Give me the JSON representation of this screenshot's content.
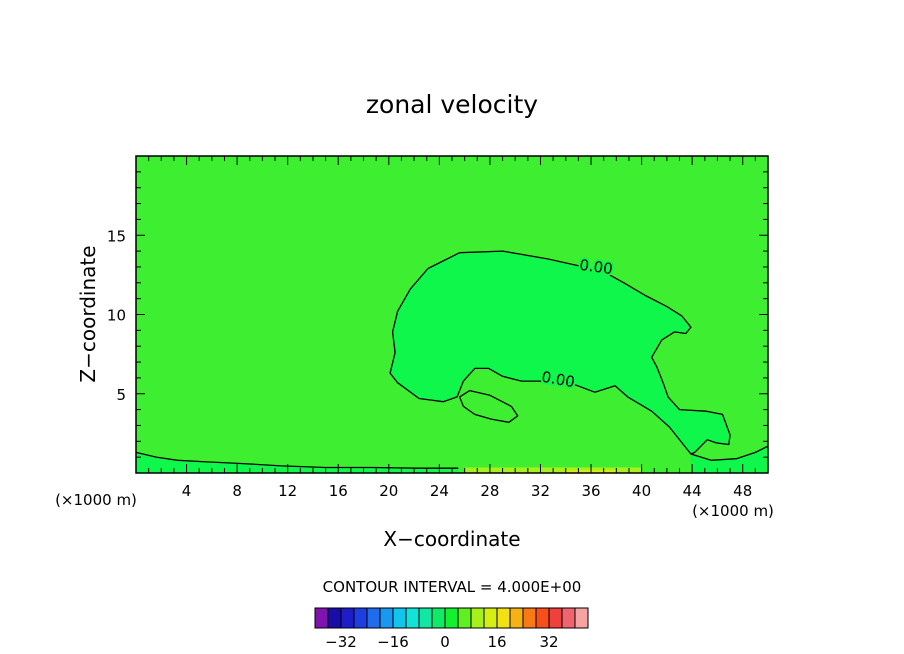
{
  "chart_data": {
    "type": "contour",
    "title": "zonal velocity",
    "xlabel": "X−coordinate",
    "ylabel": "Z−coordinate",
    "x_unit_left": "(×1000 m)",
    "x_unit_right": "(×1000 m)",
    "xlim": [
      0,
      50
    ],
    "ylim": [
      0,
      20
    ],
    "x_ticks": [
      4,
      8,
      12,
      16,
      20,
      24,
      28,
      32,
      36,
      40,
      44,
      48
    ],
    "y_ticks": [
      5,
      10,
      15
    ],
    "contour_interval_label": "CONTOUR INTERVAL = 4.000E+00",
    "contour_level_label": "0.00",
    "colorbar_ticks": [
      "−32",
      "−16",
      "0",
      "16",
      "32"
    ],
    "colorbar_colors": [
      "#7f13b0",
      "#1a0ca8",
      "#1e1ec8",
      "#1f3ee2",
      "#1f6cee",
      "#1a98f0",
      "#10c6ef",
      "#11e3d6",
      "#10e7a4",
      "#10ea66",
      "#12f030",
      "#5ef020",
      "#a6f01c",
      "#d6ef12",
      "#f2e214",
      "#f6b214",
      "#f97a14",
      "#f84e1c",
      "#f0403c",
      "#f06470",
      "#f5a3a3"
    ],
    "background_level_color": "#3eee30",
    "inner_region_color": "#0ff74a",
    "zero_contours": [
      {
        "closed": true,
        "points": [
          [
            20.1,
            6.3
          ],
          [
            20.5,
            7.6
          ],
          [
            20.3,
            8.9
          ],
          [
            20.7,
            10.2
          ],
          [
            21.7,
            11.6
          ],
          [
            23.1,
            12.9
          ],
          [
            25.6,
            13.9
          ],
          [
            29.0,
            14.0
          ],
          [
            32.6,
            13.5
          ],
          [
            35.4,
            13.0
          ],
          [
            37.0,
            12.7
          ],
          [
            38.6,
            12.0
          ],
          [
            40.3,
            11.2
          ],
          [
            42.0,
            10.5
          ],
          [
            43.2,
            9.9
          ],
          [
            43.9,
            9.2
          ],
          [
            43.5,
            8.8
          ],
          [
            42.6,
            8.9
          ],
          [
            41.6,
            8.4
          ],
          [
            40.8,
            7.3
          ],
          [
            41.2,
            6.7
          ],
          [
            41.7,
            5.7
          ],
          [
            42.1,
            4.8
          ],
          [
            43.0,
            4.0
          ],
          [
            45.1,
            3.9
          ],
          [
            46.4,
            3.7
          ],
          [
            47.0,
            2.4
          ],
          [
            46.9,
            1.8
          ],
          [
            45.9,
            1.9
          ],
          [
            45.2,
            2.1
          ],
          [
            44.2,
            1.3
          ],
          [
            43.9,
            1.2
          ],
          [
            42.2,
            2.9
          ],
          [
            40.8,
            3.9
          ],
          [
            38.9,
            4.8
          ],
          [
            37.9,
            5.5
          ],
          [
            36.3,
            5.1
          ],
          [
            34.3,
            5.7
          ],
          [
            32.5,
            5.8
          ],
          [
            30.5,
            5.8
          ],
          [
            29.0,
            6.1
          ],
          [
            27.9,
            6.6
          ],
          [
            26.8,
            6.6
          ],
          [
            25.9,
            5.8
          ],
          [
            25.4,
            4.8
          ],
          [
            24.3,
            4.5
          ],
          [
            22.4,
            4.7
          ],
          [
            20.7,
            5.7
          ]
        ]
      },
      {
        "closed": true,
        "points": [
          [
            25.6,
            4.8
          ],
          [
            26.4,
            5.2
          ],
          [
            28.0,
            4.9
          ],
          [
            29.7,
            4.2
          ],
          [
            30.2,
            3.6
          ],
          [
            29.5,
            3.2
          ],
          [
            28.1,
            3.4
          ],
          [
            26.8,
            3.7
          ],
          [
            25.9,
            4.2
          ]
        ]
      },
      {
        "closed": false,
        "points": [
          [
            0.0,
            1.3
          ],
          [
            1.6,
            1.0
          ],
          [
            3.3,
            0.8
          ],
          [
            5.6,
            0.7
          ],
          [
            8.3,
            0.6
          ],
          [
            11.5,
            0.45
          ],
          [
            15.0,
            0.35
          ],
          [
            18.7,
            0.35
          ],
          [
            22.2,
            0.3
          ],
          [
            25.5,
            0.3
          ]
        ]
      },
      {
        "closed": false,
        "points": [
          [
            43.9,
            1.2
          ],
          [
            45.5,
            0.8
          ],
          [
            47.5,
            0.9
          ],
          [
            49.0,
            1.3
          ],
          [
            50.0,
            1.7
          ]
        ]
      }
    ],
    "near_surface_bands": [
      {
        "x0": 26.0,
        "x1": 40.0,
        "y0": 0.0,
        "y1": 0.35,
        "color": "#a6f01c"
      },
      {
        "x0": 34.0,
        "x1": 38.0,
        "y0": 0.0,
        "y1": 0.18,
        "color": "#d6ef12"
      }
    ]
  }
}
